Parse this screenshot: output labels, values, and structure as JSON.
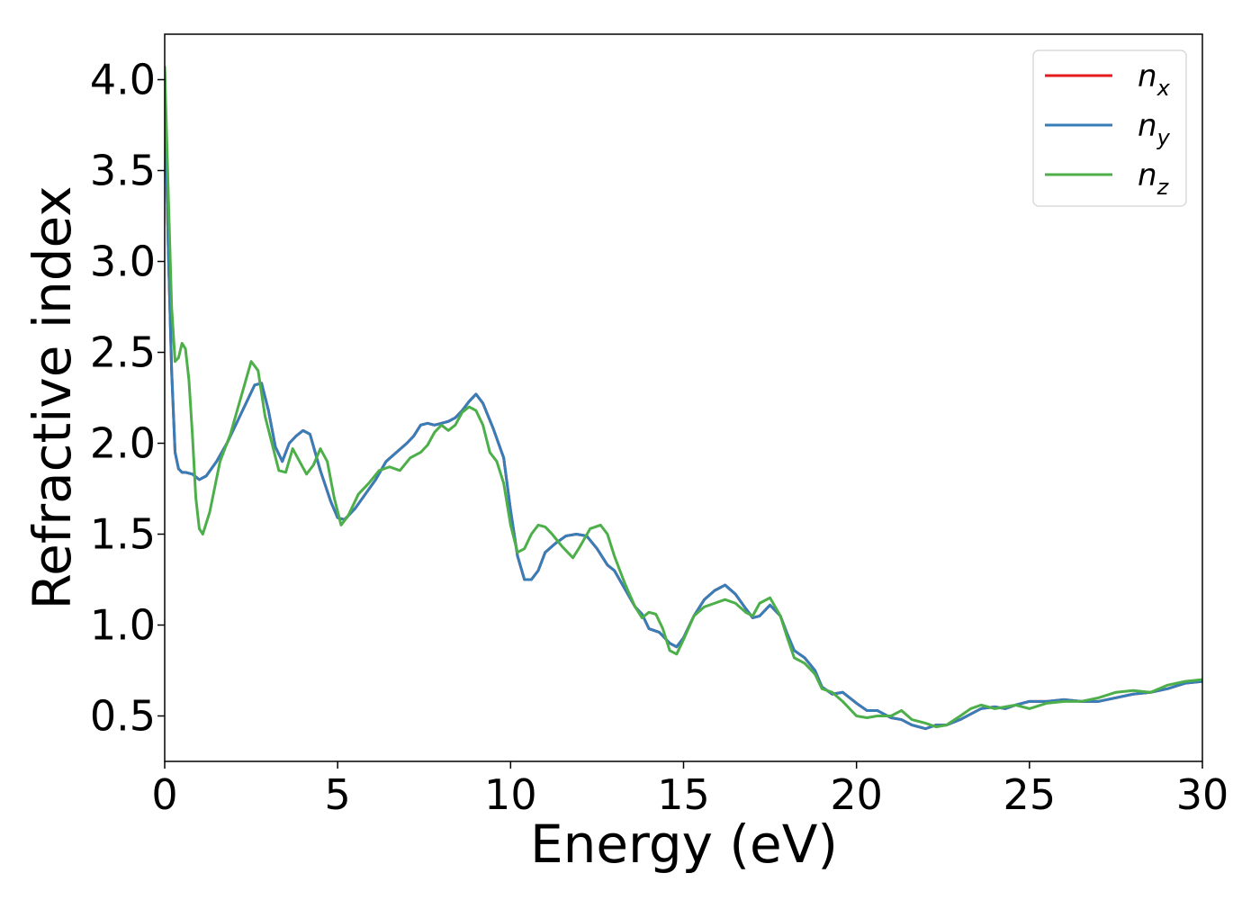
{
  "chart_data": {
    "type": "line",
    "title": "",
    "xlabel": "Energy (eV)",
    "ylabel": "Refractive index",
    "xlim": [
      0,
      30
    ],
    "ylim": [
      0.25,
      4.25
    ],
    "xticks": [
      0,
      5,
      10,
      15,
      20,
      25,
      30
    ],
    "yticks": [
      0.5,
      1.0,
      1.5,
      2.0,
      2.5,
      3.0,
      3.5,
      4.0
    ],
    "xtick_labels": [
      "0",
      "5",
      "10",
      "15",
      "20",
      "25",
      "30"
    ],
    "ytick_labels": [
      "0.5",
      "1.0",
      "1.5",
      "2.0",
      "2.5",
      "3.0",
      "3.5",
      "4.0"
    ],
    "grid": false,
    "legend_position": "top-right",
    "series": [
      {
        "name": "n_x",
        "label_base": "n",
        "label_sub": "x",
        "color": "#e41a1c",
        "x": [
          0,
          0.1,
          0.2,
          0.3,
          0.4,
          0.5,
          0.6,
          0.8,
          1.0,
          1.2,
          1.5,
          1.8,
          2.0,
          2.3,
          2.6,
          2.8,
          3.0,
          3.2,
          3.4,
          3.6,
          3.8,
          4.0,
          4.2,
          4.5,
          4.8,
          5.0,
          5.2,
          5.5,
          5.8,
          6.1,
          6.4,
          6.7,
          7.0,
          7.2,
          7.4,
          7.6,
          7.8,
          8.0,
          8.2,
          8.4,
          8.6,
          8.8,
          9.0,
          9.2,
          9.5,
          9.8,
          10.0,
          10.2,
          10.4,
          10.6,
          10.8,
          11.0,
          11.3,
          11.6,
          11.9,
          12.2,
          12.5,
          12.8,
          13.0,
          13.3,
          13.6,
          13.8,
          14.0,
          14.3,
          14.6,
          14.8,
          15.0,
          15.3,
          15.6,
          15.9,
          16.2,
          16.5,
          16.8,
          17.0,
          17.2,
          17.5,
          17.8,
          18.0,
          18.2,
          18.5,
          18.8,
          19.0,
          19.3,
          19.6,
          20.0,
          20.3,
          20.6,
          21.0,
          21.3,
          21.6,
          22.0,
          22.3,
          22.6,
          23.0,
          23.3,
          23.6,
          24.0,
          24.3,
          24.6,
          25.0,
          25.5,
          26.0,
          26.5,
          27.0,
          27.5,
          28.0,
          28.5,
          29.0,
          29.5,
          30.0
        ],
        "y": [
          4.05,
          3.1,
          2.4,
          1.95,
          1.86,
          1.84,
          1.84,
          1.83,
          1.8,
          1.82,
          1.9,
          2.0,
          2.08,
          2.2,
          2.32,
          2.33,
          2.18,
          1.98,
          1.9,
          2.0,
          2.04,
          2.07,
          2.05,
          1.85,
          1.68,
          1.59,
          1.58,
          1.64,
          1.72,
          1.8,
          1.9,
          1.95,
          2.0,
          2.04,
          2.1,
          2.11,
          2.1,
          2.11,
          2.12,
          2.14,
          2.18,
          2.23,
          2.27,
          2.22,
          2.08,
          1.92,
          1.63,
          1.38,
          1.25,
          1.25,
          1.3,
          1.4,
          1.45,
          1.49,
          1.5,
          1.49,
          1.42,
          1.33,
          1.3,
          1.2,
          1.1,
          1.06,
          0.98,
          0.96,
          0.9,
          0.88,
          0.93,
          1.05,
          1.14,
          1.19,
          1.22,
          1.17,
          1.09,
          1.04,
          1.05,
          1.11,
          1.05,
          0.95,
          0.86,
          0.82,
          0.75,
          0.66,
          0.62,
          0.63,
          0.57,
          0.53,
          0.53,
          0.49,
          0.48,
          0.45,
          0.43,
          0.45,
          0.45,
          0.48,
          0.51,
          0.54,
          0.55,
          0.54,
          0.56,
          0.58,
          0.58,
          0.59,
          0.58,
          0.58,
          0.6,
          0.62,
          0.63,
          0.65,
          0.68,
          0.69
        ]
      },
      {
        "name": "n_y",
        "label_base": "n",
        "label_sub": "y",
        "color": "#377eb8",
        "x": [
          0,
          0.1,
          0.2,
          0.3,
          0.4,
          0.5,
          0.6,
          0.8,
          1.0,
          1.2,
          1.5,
          1.8,
          2.0,
          2.3,
          2.6,
          2.8,
          3.0,
          3.2,
          3.4,
          3.6,
          3.8,
          4.0,
          4.2,
          4.5,
          4.8,
          5.0,
          5.2,
          5.5,
          5.8,
          6.1,
          6.4,
          6.7,
          7.0,
          7.2,
          7.4,
          7.6,
          7.8,
          8.0,
          8.2,
          8.4,
          8.6,
          8.8,
          9.0,
          9.2,
          9.5,
          9.8,
          10.0,
          10.2,
          10.4,
          10.6,
          10.8,
          11.0,
          11.3,
          11.6,
          11.9,
          12.2,
          12.5,
          12.8,
          13.0,
          13.3,
          13.6,
          13.8,
          14.0,
          14.3,
          14.6,
          14.8,
          15.0,
          15.3,
          15.6,
          15.9,
          16.2,
          16.5,
          16.8,
          17.0,
          17.2,
          17.5,
          17.8,
          18.0,
          18.2,
          18.5,
          18.8,
          19.0,
          19.3,
          19.6,
          20.0,
          20.3,
          20.6,
          21.0,
          21.3,
          21.6,
          22.0,
          22.3,
          22.6,
          23.0,
          23.3,
          23.6,
          24.0,
          24.3,
          24.6,
          25.0,
          25.5,
          26.0,
          26.5,
          27.0,
          27.5,
          28.0,
          28.5,
          29.0,
          29.5,
          30.0
        ],
        "y": [
          4.05,
          3.1,
          2.4,
          1.95,
          1.86,
          1.84,
          1.84,
          1.83,
          1.8,
          1.82,
          1.9,
          2.0,
          2.08,
          2.2,
          2.32,
          2.33,
          2.18,
          1.98,
          1.9,
          2.0,
          2.04,
          2.07,
          2.05,
          1.85,
          1.68,
          1.59,
          1.58,
          1.64,
          1.72,
          1.8,
          1.9,
          1.95,
          2.0,
          2.04,
          2.1,
          2.11,
          2.1,
          2.11,
          2.12,
          2.14,
          2.18,
          2.23,
          2.27,
          2.22,
          2.08,
          1.92,
          1.63,
          1.38,
          1.25,
          1.25,
          1.3,
          1.4,
          1.45,
          1.49,
          1.5,
          1.49,
          1.42,
          1.33,
          1.3,
          1.2,
          1.1,
          1.06,
          0.98,
          0.96,
          0.9,
          0.88,
          0.93,
          1.05,
          1.14,
          1.19,
          1.22,
          1.17,
          1.09,
          1.04,
          1.05,
          1.11,
          1.05,
          0.95,
          0.86,
          0.82,
          0.75,
          0.66,
          0.62,
          0.63,
          0.57,
          0.53,
          0.53,
          0.49,
          0.48,
          0.45,
          0.43,
          0.45,
          0.45,
          0.48,
          0.51,
          0.54,
          0.55,
          0.54,
          0.56,
          0.58,
          0.58,
          0.59,
          0.58,
          0.58,
          0.6,
          0.62,
          0.63,
          0.65,
          0.68,
          0.69
        ]
      },
      {
        "name": "n_z",
        "label_base": "n",
        "label_sub": "z",
        "color": "#4daf4a",
        "x": [
          0,
          0.1,
          0.2,
          0.3,
          0.4,
          0.5,
          0.6,
          0.7,
          0.8,
          0.9,
          1.0,
          1.1,
          1.3,
          1.6,
          1.9,
          2.2,
          2.5,
          2.7,
          2.9,
          3.1,
          3.3,
          3.5,
          3.7,
          3.9,
          4.1,
          4.3,
          4.5,
          4.7,
          4.9,
          5.1,
          5.3,
          5.6,
          5.9,
          6.2,
          6.5,
          6.8,
          7.1,
          7.4,
          7.6,
          7.8,
          8.0,
          8.2,
          8.4,
          8.6,
          8.8,
          9.0,
          9.2,
          9.4,
          9.6,
          9.8,
          10.0,
          10.2,
          10.4,
          10.6,
          10.8,
          11.0,
          11.2,
          11.5,
          11.8,
          12.0,
          12.3,
          12.6,
          12.8,
          13.0,
          13.3,
          13.6,
          13.8,
          14.0,
          14.2,
          14.4,
          14.6,
          14.8,
          15.0,
          15.3,
          15.6,
          15.9,
          16.2,
          16.5,
          16.8,
          17.0,
          17.2,
          17.5,
          17.8,
          18.0,
          18.2,
          18.5,
          18.8,
          19.0,
          19.3,
          19.6,
          20.0,
          20.3,
          20.6,
          21.0,
          21.3,
          21.6,
          22.0,
          22.3,
          22.6,
          23.0,
          23.3,
          23.6,
          24.0,
          24.3,
          24.6,
          25.0,
          25.5,
          26.0,
          26.5,
          27.0,
          27.5,
          28.0,
          28.5,
          29.0,
          29.5,
          30.0
        ],
        "y": [
          4.07,
          3.4,
          2.75,
          2.45,
          2.47,
          2.55,
          2.52,
          2.35,
          2.05,
          1.7,
          1.53,
          1.5,
          1.62,
          1.9,
          2.05,
          2.25,
          2.45,
          2.4,
          2.15,
          2.0,
          1.85,
          1.84,
          1.97,
          1.9,
          1.83,
          1.88,
          1.97,
          1.9,
          1.7,
          1.55,
          1.6,
          1.72,
          1.78,
          1.85,
          1.87,
          1.85,
          1.92,
          1.95,
          1.99,
          2.06,
          2.1,
          2.07,
          2.1,
          2.17,
          2.2,
          2.18,
          2.1,
          1.95,
          1.9,
          1.78,
          1.55,
          1.4,
          1.42,
          1.5,
          1.55,
          1.54,
          1.5,
          1.43,
          1.37,
          1.43,
          1.53,
          1.55,
          1.5,
          1.38,
          1.23,
          1.1,
          1.04,
          1.07,
          1.06,
          0.98,
          0.86,
          0.84,
          0.92,
          1.05,
          1.1,
          1.12,
          1.14,
          1.12,
          1.07,
          1.05,
          1.12,
          1.15,
          1.05,
          0.93,
          0.82,
          0.79,
          0.73,
          0.65,
          0.63,
          0.58,
          0.5,
          0.49,
          0.5,
          0.5,
          0.53,
          0.48,
          0.46,
          0.44,
          0.45,
          0.5,
          0.54,
          0.56,
          0.54,
          0.55,
          0.56,
          0.54,
          0.57,
          0.58,
          0.58,
          0.6,
          0.63,
          0.64,
          0.63,
          0.67,
          0.69,
          0.7
        ]
      }
    ]
  }
}
